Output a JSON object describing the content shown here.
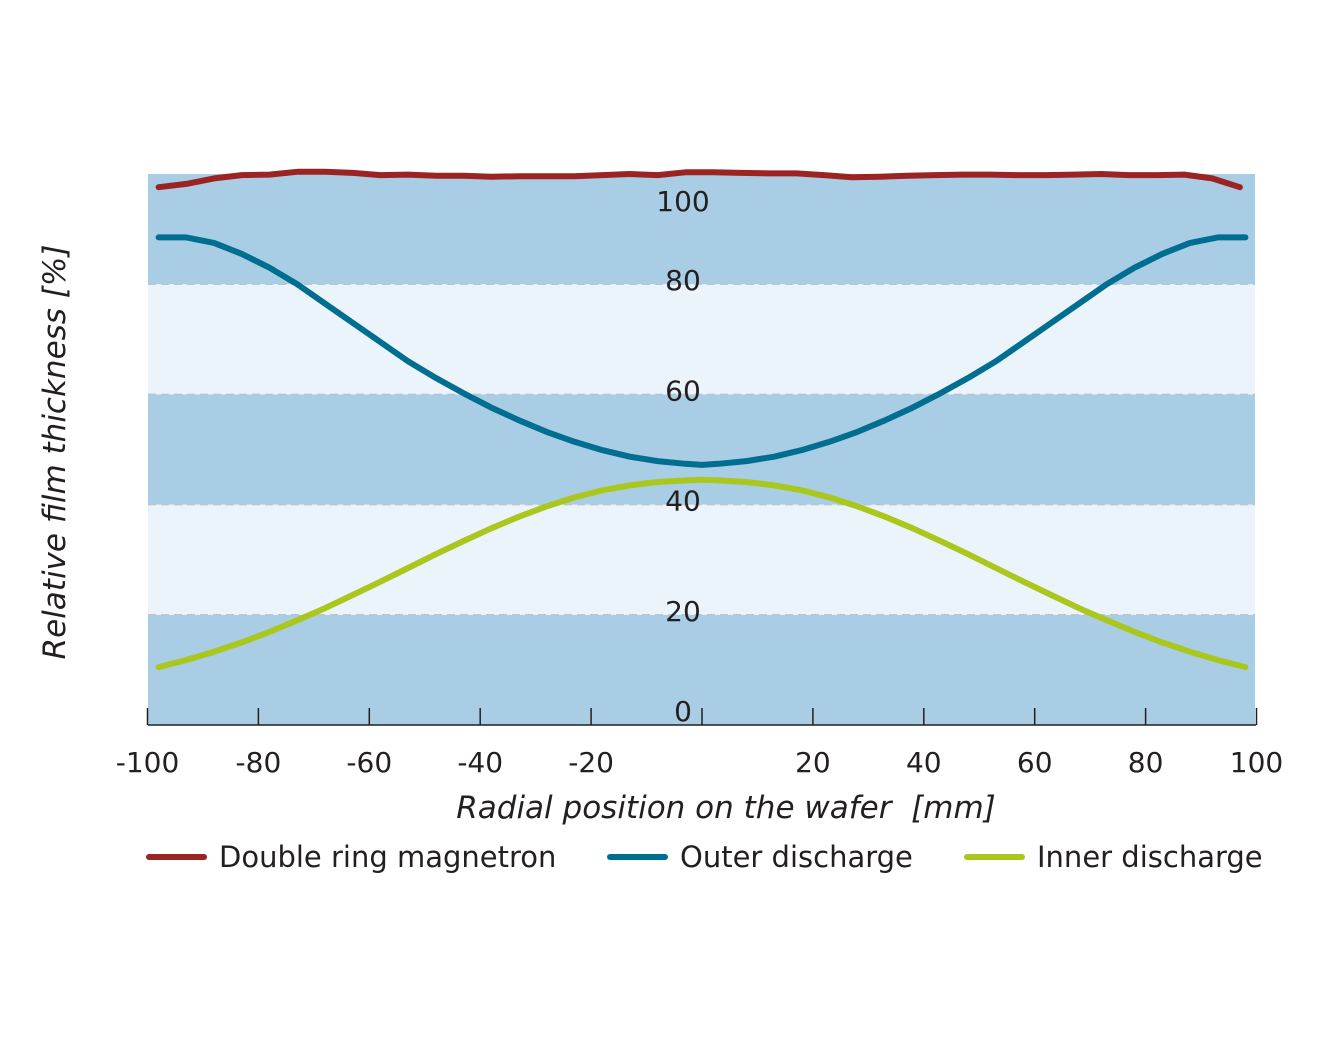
{
  "colors": {
    "band_dark": "#a9cde5",
    "band_light": "#ebf4fb",
    "grid_dash": "#b9c6d0",
    "axis": "#231f20"
  },
  "chart_data": {
    "type": "line",
    "xlabel": "Radial position on the wafer  [mm]",
    "ylabel": "Relative film thickness [%]",
    "xlim": [
      -100,
      100
    ],
    "ylim": [
      0,
      100
    ],
    "x_ticks": [
      -100,
      -80,
      -60,
      -40,
      -20,
      0,
      20,
      40,
      60,
      80,
      100
    ],
    "x_tick_labels": [
      "-100",
      "-80",
      "-60",
      "-40",
      "-20",
      "20",
      "40",
      "60",
      "80",
      "100"
    ],
    "y_ticks": [
      0,
      20,
      40,
      60,
      80,
      100
    ],
    "y_tick_labels": [
      "0",
      "20",
      "40",
      "60",
      "80",
      "100"
    ],
    "grid": true,
    "legend_position": "bottom",
    "series": [
      {
        "name": "Double ring magnetron",
        "color": "#9b2423",
        "points": [
          [
            -98,
            97.6
          ],
          [
            -93,
            98.2
          ],
          [
            -88,
            99.2
          ],
          [
            -83,
            99.8
          ],
          [
            -78,
            99.9
          ],
          [
            -73,
            100.4
          ],
          [
            -68,
            100.4
          ],
          [
            -63,
            100.2
          ],
          [
            -58,
            99.8
          ],
          [
            -53,
            99.9
          ],
          [
            -48,
            99.7
          ],
          [
            -43,
            99.7
          ],
          [
            -38,
            99.5
          ],
          [
            -33,
            99.6
          ],
          [
            -28,
            99.6
          ],
          [
            -23,
            99.6
          ],
          [
            -18,
            99.8
          ],
          [
            -13,
            100.0
          ],
          [
            -8,
            99.8
          ],
          [
            -3,
            100.3
          ],
          [
            2,
            100.3
          ],
          [
            7,
            100.2
          ],
          [
            12,
            100.1
          ],
          [
            17,
            100.1
          ],
          [
            22,
            99.8
          ],
          [
            27,
            99.4
          ],
          [
            32,
            99.5
          ],
          [
            37,
            99.7
          ],
          [
            42,
            99.8
          ],
          [
            47,
            99.9
          ],
          [
            52,
            99.9
          ],
          [
            57,
            99.8
          ],
          [
            62,
            99.8
          ],
          [
            67,
            99.9
          ],
          [
            72,
            100.0
          ],
          [
            77,
            99.8
          ],
          [
            82,
            99.8
          ],
          [
            87,
            99.9
          ],
          [
            92,
            99.2
          ],
          [
            97,
            97.6
          ]
        ]
      },
      {
        "name": "Outer discharge",
        "color": "#006e91",
        "points": [
          [
            -98,
            88.5
          ],
          [
            -93,
            88.5
          ],
          [
            -88,
            87.5
          ],
          [
            -83,
            85.5
          ],
          [
            -78,
            83.0
          ],
          [
            -73,
            80.0
          ],
          [
            -68,
            76.5
          ],
          [
            -63,
            73.0
          ],
          [
            -58,
            69.5
          ],
          [
            -53,
            66.0
          ],
          [
            -48,
            63.0
          ],
          [
            -43,
            60.2
          ],
          [
            -38,
            57.6
          ],
          [
            -33,
            55.3
          ],
          [
            -28,
            53.2
          ],
          [
            -23,
            51.4
          ],
          [
            -18,
            49.9
          ],
          [
            -13,
            48.7
          ],
          [
            -8,
            47.9
          ],
          [
            -3,
            47.4
          ],
          [
            0,
            47.2
          ],
          [
            3,
            47.4
          ],
          [
            8,
            47.9
          ],
          [
            13,
            48.7
          ],
          [
            18,
            49.9
          ],
          [
            23,
            51.4
          ],
          [
            28,
            53.2
          ],
          [
            33,
            55.3
          ],
          [
            38,
            57.6
          ],
          [
            43,
            60.2
          ],
          [
            48,
            63.0
          ],
          [
            53,
            66.0
          ],
          [
            58,
            69.5
          ],
          [
            63,
            73.0
          ],
          [
            68,
            76.5
          ],
          [
            73,
            80.0
          ],
          [
            78,
            83.0
          ],
          [
            83,
            85.5
          ],
          [
            88,
            87.5
          ],
          [
            93,
            88.5
          ],
          [
            98,
            88.5
          ]
        ]
      },
      {
        "name": "Inner discharge",
        "color": "#a9c71c",
        "points": [
          [
            -98,
            10.5
          ],
          [
            -93,
            11.8
          ],
          [
            -88,
            13.3
          ],
          [
            -83,
            15.0
          ],
          [
            -78,
            16.9
          ],
          [
            -73,
            19.0
          ],
          [
            -68,
            21.2
          ],
          [
            -63,
            23.6
          ],
          [
            -58,
            26.0
          ],
          [
            -53,
            28.5
          ],
          [
            -48,
            31.0
          ],
          [
            -43,
            33.4
          ],
          [
            -38,
            35.7
          ],
          [
            -33,
            37.8
          ],
          [
            -28,
            39.7
          ],
          [
            -23,
            41.3
          ],
          [
            -18,
            42.6
          ],
          [
            -13,
            43.5
          ],
          [
            -8,
            44.1
          ],
          [
            -3,
            44.4
          ],
          [
            0,
            44.5
          ],
          [
            3,
            44.4
          ],
          [
            8,
            44.1
          ],
          [
            13,
            43.5
          ],
          [
            18,
            42.6
          ],
          [
            23,
            41.3
          ],
          [
            28,
            39.7
          ],
          [
            33,
            37.8
          ],
          [
            38,
            35.7
          ],
          [
            43,
            33.4
          ],
          [
            48,
            31.0
          ],
          [
            53,
            28.5
          ],
          [
            58,
            26.0
          ],
          [
            63,
            23.6
          ],
          [
            68,
            21.2
          ],
          [
            73,
            19.0
          ],
          [
            78,
            16.9
          ],
          [
            83,
            15.0
          ],
          [
            88,
            13.3
          ],
          [
            93,
            11.8
          ],
          [
            98,
            10.5
          ]
        ]
      }
    ]
  }
}
